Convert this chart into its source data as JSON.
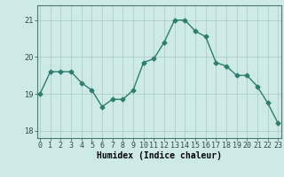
{
  "x": [
    0,
    1,
    2,
    3,
    4,
    5,
    6,
    7,
    8,
    9,
    10,
    11,
    12,
    13,
    14,
    15,
    16,
    17,
    18,
    19,
    20,
    21,
    22,
    23
  ],
  "y": [
    19.0,
    19.6,
    19.6,
    19.6,
    19.3,
    19.1,
    18.65,
    18.85,
    18.85,
    19.1,
    19.85,
    19.95,
    20.4,
    21.0,
    21.0,
    20.7,
    20.55,
    19.85,
    19.75,
    19.5,
    19.5,
    19.2,
    18.75,
    18.2
  ],
  "line_color": "#2e7d6e",
  "marker": "D",
  "markersize": 2.5,
  "linewidth": 1.0,
  "bg_color": "#ceeae7",
  "grid_color": "#a8c8c4",
  "xlabel": "Humidex (Indice chaleur)",
  "xlabel_fontsize": 7,
  "tick_fontsize": 6,
  "ylim": [
    17.8,
    21.4
  ],
  "yticks": [
    18,
    19,
    20,
    21
  ],
  "xlim": [
    -0.3,
    23.3
  ]
}
